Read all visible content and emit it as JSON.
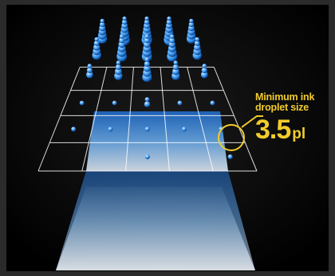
{
  "callout": {
    "line1": "Minimum ink",
    "line2": "droplet size",
    "value": "3.5",
    "unit": "pl"
  },
  "colors": {
    "accent": "#f1cc2c",
    "grid": "#ffffff",
    "droplet": "#2f8fe6",
    "background": "#0d0d0d"
  },
  "scene": {
    "columns": 5,
    "rows": 6,
    "droplet_stack_heights": [
      [
        6,
        7,
        7,
        7,
        6
      ],
      [
        5,
        6,
        6,
        6,
        5
      ],
      [
        3,
        4,
        5,
        4,
        3
      ],
      [
        1,
        1,
        2,
        1,
        1
      ],
      [
        1,
        1,
        1,
        1,
        1
      ],
      [
        0,
        0,
        1,
        0,
        1
      ]
    ]
  }
}
